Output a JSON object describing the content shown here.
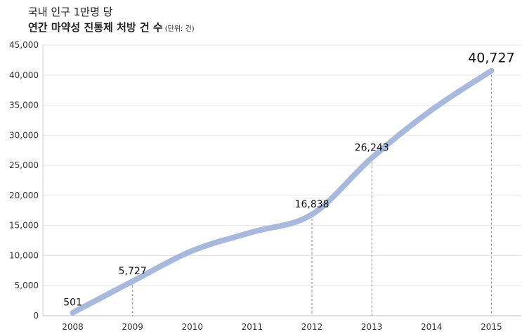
{
  "title_line1": "국내 인구 1만명 당",
  "title_line2": "연간 마약성 진통제 처방 건 수",
  "unit_note": "(단위: 건)",
  "colors": {
    "line": "#a8b9de",
    "grid": "#e6e6e6",
    "guide": "#888888"
  },
  "chart_data": {
    "type": "line",
    "title": "국내 인구 1만명 당 연간 마약성 진통제 처방 건 수",
    "x": [
      "2008",
      "2009",
      "2010",
      "2011",
      "2012",
      "2013",
      "2014",
      "2015"
    ],
    "series": [
      {
        "values": [
          501,
          5727,
          10800,
          13900,
          16838,
          26243,
          34200,
          40727
        ]
      }
    ],
    "ylim": [
      0,
      45000
    ],
    "yticks": [
      "0",
      "5,000",
      "10,000",
      "15,000",
      "20,000",
      "25,000",
      "30,000",
      "35,000",
      "40,000",
      "45,000"
    ],
    "data_labels": [
      {
        "index": 0,
        "text": "501"
      },
      {
        "index": 1,
        "text": "5,727"
      },
      {
        "index": 4,
        "text": "16,838"
      },
      {
        "index": 5,
        "text": "26,243"
      },
      {
        "index": 7,
        "text": "40,727"
      }
    ],
    "grid": true
  }
}
